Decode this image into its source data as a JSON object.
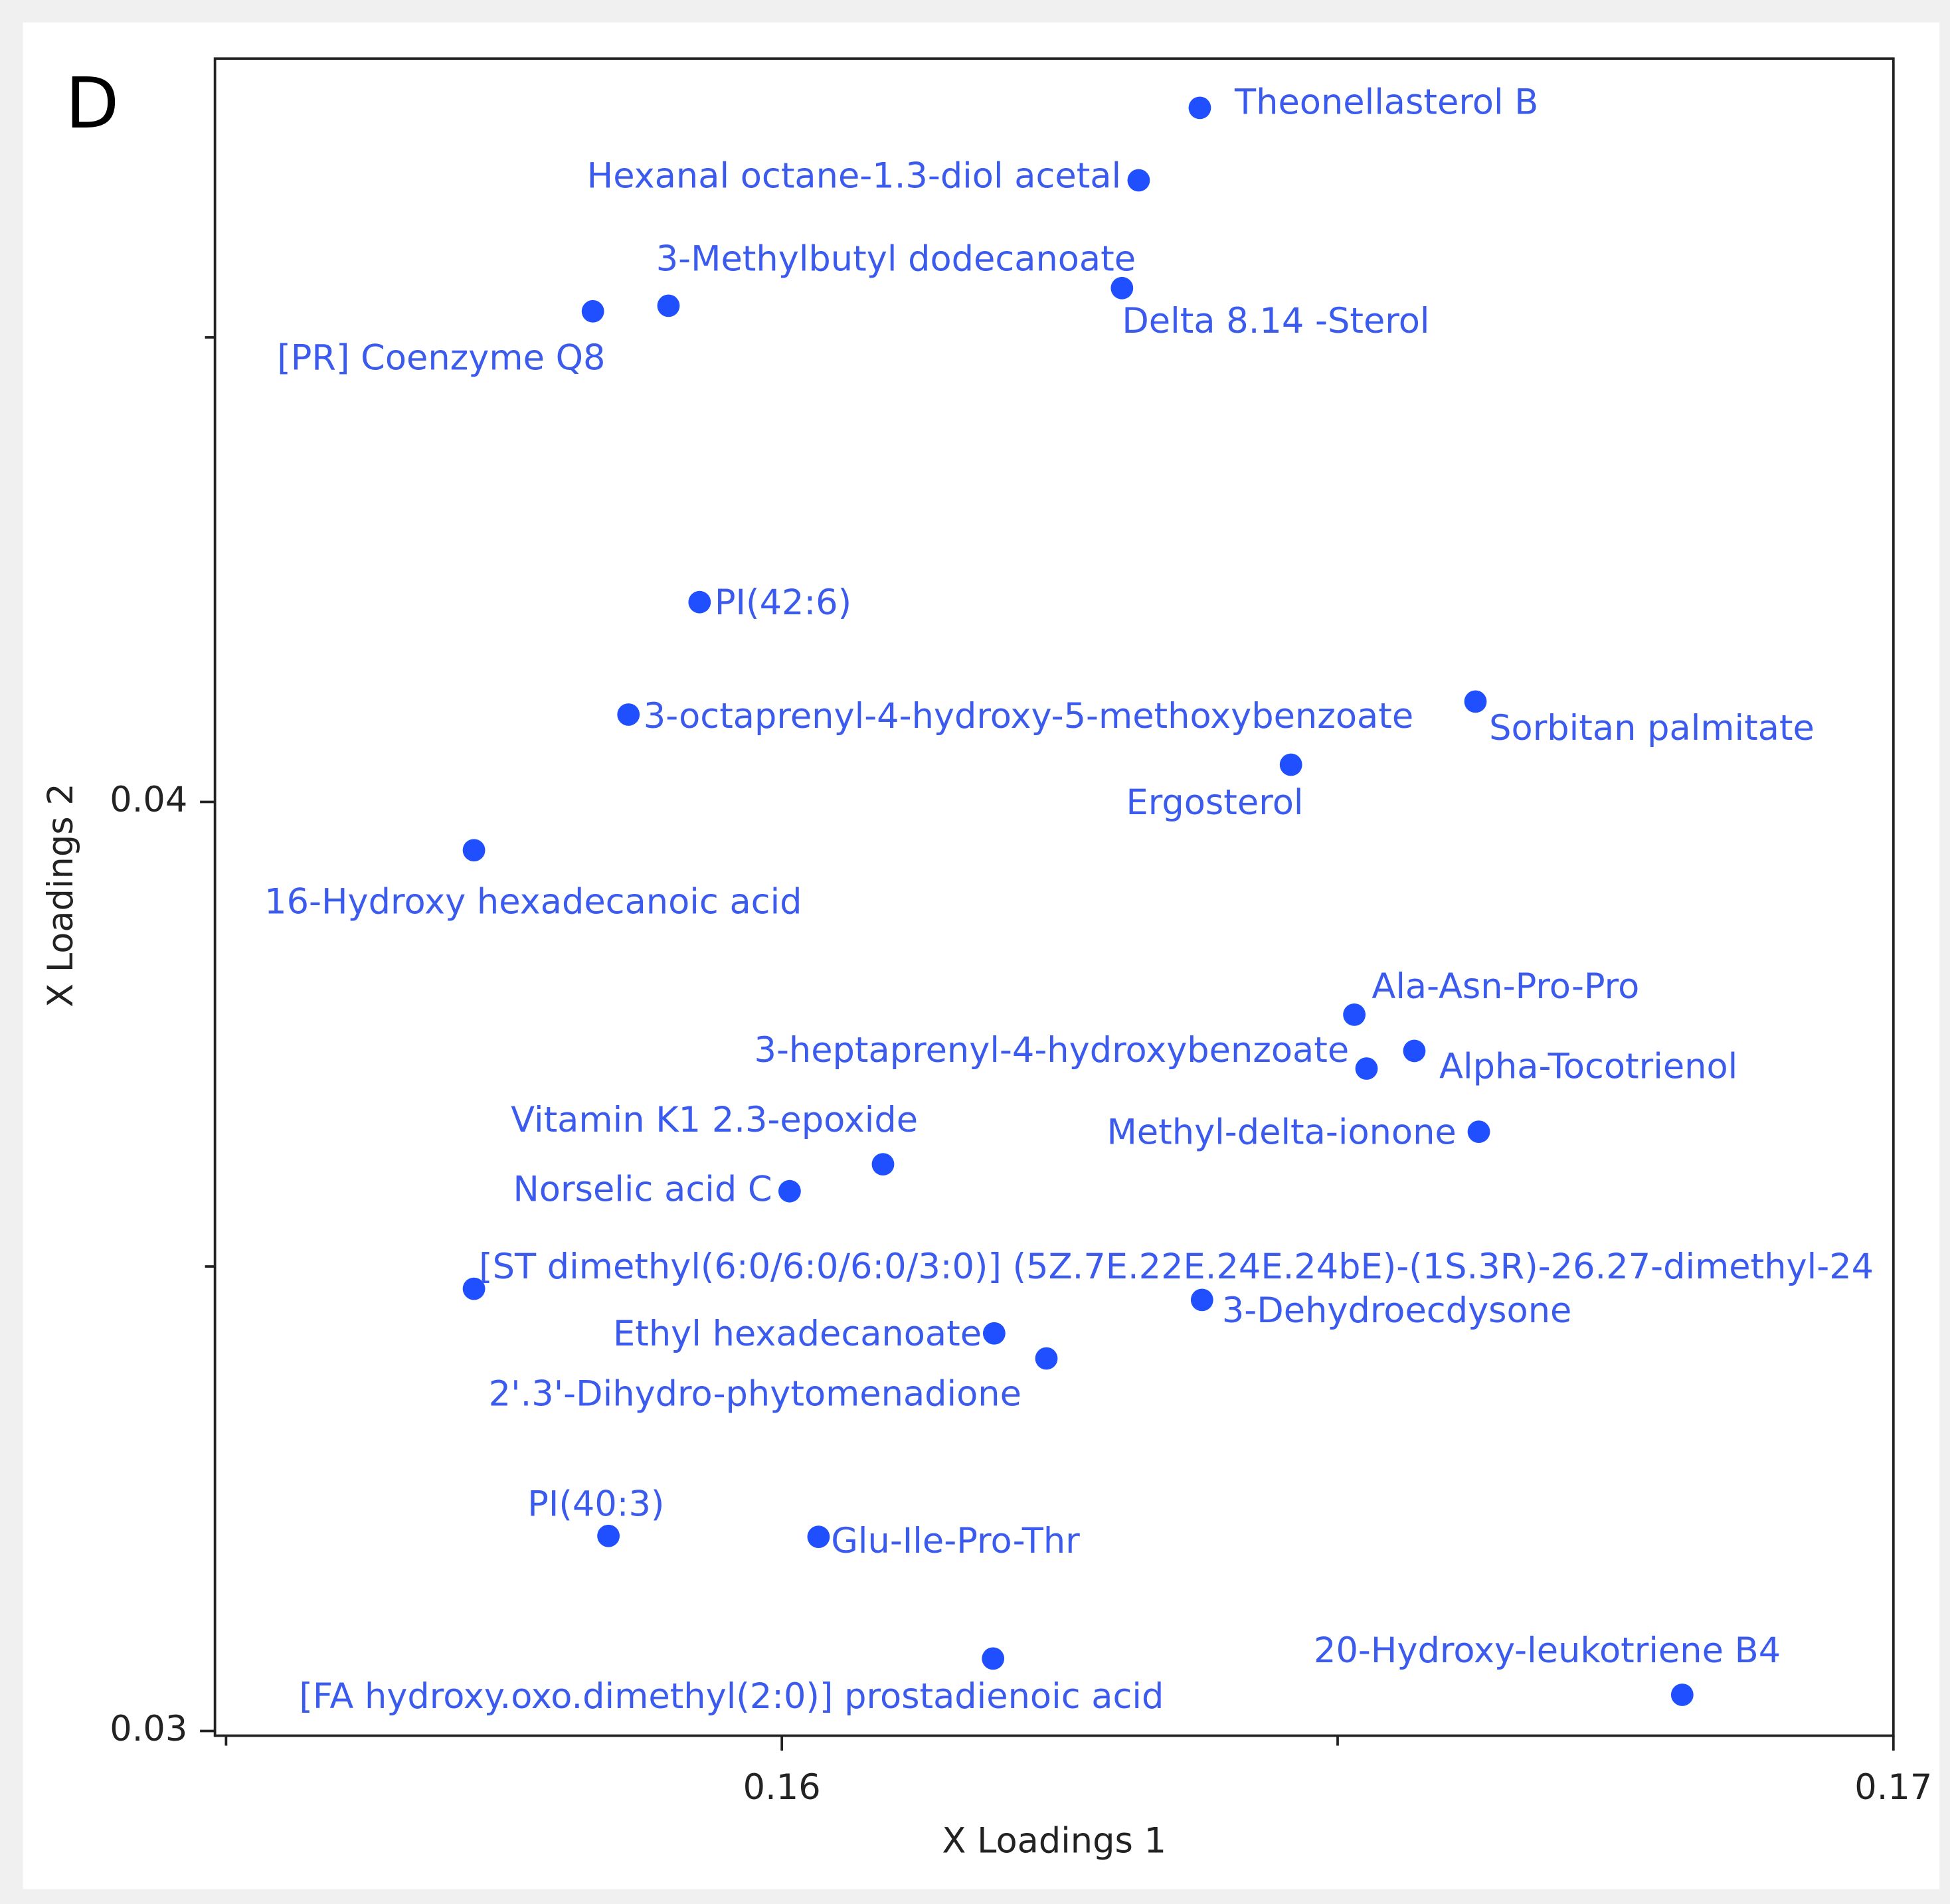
{
  "chart_data": {
    "type": "scatter",
    "panel": "D",
    "x_label": "X Loadings 1",
    "y_label": "X Loadings 2",
    "xlim": [
      0.1549,
      0.17
    ],
    "ylim": [
      0.02995,
      0.048
    ],
    "xticks": [
      0.16,
      0.17
    ],
    "yticks": [
      0.03,
      0.04
    ],
    "xticks_minor": [
      0.155,
      0.165
    ],
    "yticks_minor": [
      0.035,
      0.045
    ],
    "color": "#1f4fff",
    "labels": [
      "Theonellasterol B",
      "Hexanal octane-1.3-diol acetal",
      "3-Methylbutyl dodecanoate",
      "[PR] Coenzyme Q8",
      "Delta 8.14 -Sterol",
      "PI(42:6)",
      "3-octaprenyl-4-hydroxy-5-methoxybenzoate",
      "Sorbitan palmitate",
      "Ergosterol",
      "16-Hydroxy hexadecanoic acid",
      "Ala-Asn-Pro-Pro",
      "3-heptaprenyl-4-hydroxybenzoate",
      "Alpha-Tocotrienol",
      "Methyl-delta-ionone",
      "Vitamin K1 2.3-epoxide",
      "Norselic acid C",
      "[ST dimethyl(6:0/6:0/6:0/3:0)] (5Z.7E.22E.24E.24bE)-(1S.3R)-26.27-dimethyl-24",
      "3-Dehydroecdysone",
      "Ethyl hexadecanoate",
      "2'.3'-Dihydro-phytomenadione",
      "PI(40:3)",
      "Glu-Ile-Pro-Thr",
      "[FA hydroxy.oxo.dimethyl(2:0)] prostadienoic acid",
      "20-Hydroxy-leukotriene B4"
    ],
    "x": [
      0.16376,
      0.16321,
      0.15898,
      0.1583,
      0.16306,
      0.15926,
      0.15862,
      0.16624,
      0.16458,
      0.15723,
      0.16515,
      0.16526,
      0.16569,
      0.16627,
      0.16091,
      0.16007,
      0.15723,
      0.16378,
      0.16191,
      0.16238,
      0.15844,
      0.16033,
      0.1619,
      0.1681
    ],
    "y": [
      0.04747,
      0.04669,
      0.04534,
      0.04528,
      0.04553,
      0.04215,
      0.04094,
      0.04108,
      0.0404,
      0.03948,
      0.03771,
      0.03713,
      0.03732,
      0.03645,
      0.0361,
      0.03581,
      0.03476,
      0.03464,
      0.03428,
      0.03401,
      0.0321,
      0.03209,
      0.03078,
      0.03039
    ]
  }
}
